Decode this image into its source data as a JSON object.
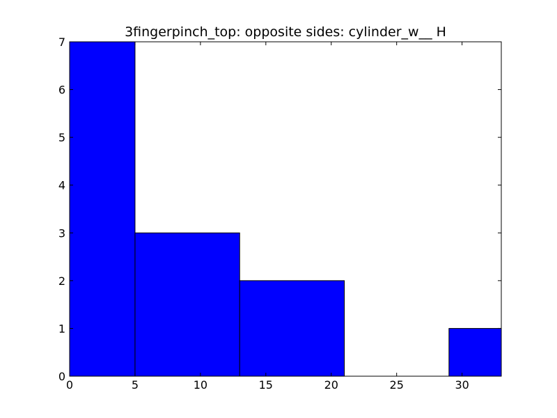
{
  "chart_data": {
    "type": "bar",
    "title": "3fingerpinch_top: opposite sides: cylinder_w__ H",
    "xlabel": "",
    "ylabel": "",
    "xlim": [
      0,
      33
    ],
    "ylim": [
      0,
      7
    ],
    "xticks": [
      0,
      5,
      10,
      15,
      20,
      25,
      30
    ],
    "yticks": [
      0,
      1,
      2,
      3,
      4,
      5,
      6,
      7
    ],
    "bins": [
      {
        "x0": 0,
        "x1": 5,
        "value": 7
      },
      {
        "x0": 5,
        "x1": 13,
        "value": 3
      },
      {
        "x0": 13,
        "x1": 21,
        "value": 2
      },
      {
        "x0": 21,
        "x1": 29,
        "value": 0
      },
      {
        "x0": 29,
        "x1": 33,
        "value": 1
      }
    ],
    "bar_color": "#0000ff",
    "edge_color": "#000000",
    "grid": false,
    "legend": "none"
  }
}
